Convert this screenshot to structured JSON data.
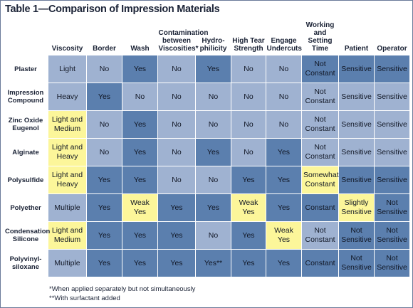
{
  "title": "Table 1—Comparison of Impression Materials",
  "headers": [
    "",
    "Viscosity",
    "Border",
    "Wash",
    "Contamination between Viscosities*",
    "Hydro-philicity",
    "High Tear Strength",
    "Engage Undercuts",
    "Working and Setting Time",
    "Patient",
    "Operator"
  ],
  "rows": [
    {
      "label": "Plaster",
      "cells": [
        "Light",
        "No",
        "Yes",
        "No",
        "Yes",
        "No",
        "No",
        "Not Constant",
        "Sensitive",
        "Sensitive"
      ]
    },
    {
      "label": "Impression Compound",
      "cells": [
        "Heavy",
        "Yes",
        "No",
        "No",
        "No",
        "No",
        "No",
        "Not Constant",
        "Sensitive",
        "Sensitive"
      ]
    },
    {
      "label": "Zinc Oxide Eugenol",
      "cells": [
        "Light and Medium",
        "No",
        "Yes",
        "No",
        "No",
        "No",
        "No",
        "Not Constant",
        "Sensitive",
        "Sensitive"
      ]
    },
    {
      "label": "Alginate",
      "cells": [
        "Light and Heavy",
        "No",
        "Yes",
        "No",
        "Yes",
        "No",
        "Yes",
        "Not Constant",
        "Sensitive",
        "Sensitive"
      ]
    },
    {
      "label": "Polysulfide",
      "cells": [
        "Light and Heavy",
        "Yes",
        "Yes",
        "No",
        "No",
        "Yes",
        "Yes",
        "Somewhat Constant",
        "Sensitive",
        "Sensitive"
      ]
    },
    {
      "label": "Polyether",
      "cells": [
        "Multiple",
        "Yes",
        "Weak Yes",
        "Yes",
        "Yes",
        "Weak Yes",
        "Yes",
        "Constant",
        "Slightly Sensitive",
        "Not Sensitive"
      ]
    },
    {
      "label": "Condensation Silicone",
      "cells": [
        "Light and Medium",
        "Yes",
        "Yes",
        "Yes",
        "No",
        "Yes",
        "Weak Yes",
        "Not Constant",
        "Not Sensitive",
        "Not Sensitive"
      ]
    },
    {
      "label": "Polyvinyl-siloxane",
      "cells": [
        "Multiple",
        "Yes",
        "Yes",
        "Yes",
        "Yes**",
        "Yes",
        "Yes",
        "Constant",
        "Not Sensitive",
        "Not Sensitive"
      ]
    }
  ],
  "cell_colors": [
    [
      "light",
      "light",
      "dark",
      "light",
      "dark",
      "light",
      "light",
      "dark",
      "dark",
      "dark"
    ],
    [
      "light",
      "dark",
      "light",
      "light",
      "light",
      "light",
      "light",
      "light",
      "light",
      "light"
    ],
    [
      "yel",
      "light",
      "dark",
      "light",
      "light",
      "light",
      "light",
      "light",
      "light",
      "light"
    ],
    [
      "yel",
      "light",
      "dark",
      "light",
      "dark",
      "light",
      "dark",
      "light",
      "light",
      "light"
    ],
    [
      "yel",
      "dark",
      "dark",
      "light",
      "light",
      "dark",
      "dark",
      "yel",
      "dark",
      "dark"
    ],
    [
      "light",
      "dark",
      "yel",
      "dark",
      "dark",
      "yel",
      "dark",
      "dark",
      "yel",
      "dark"
    ],
    [
      "yel",
      "dark",
      "dark",
      "dark",
      "light",
      "dark",
      "yel",
      "light",
      "dark",
      "dark"
    ],
    [
      "light",
      "dark",
      "dark",
      "dark",
      "dark",
      "dark",
      "dark",
      "dark",
      "dark",
      "dark"
    ]
  ],
  "colors": {
    "light": "#9fb2d1",
    "dark": "#5b7fae",
    "yel": "#fcf69a"
  },
  "footnotes": [
    "*When applied separately but not simultaneously",
    "**With surfactant added"
  ]
}
